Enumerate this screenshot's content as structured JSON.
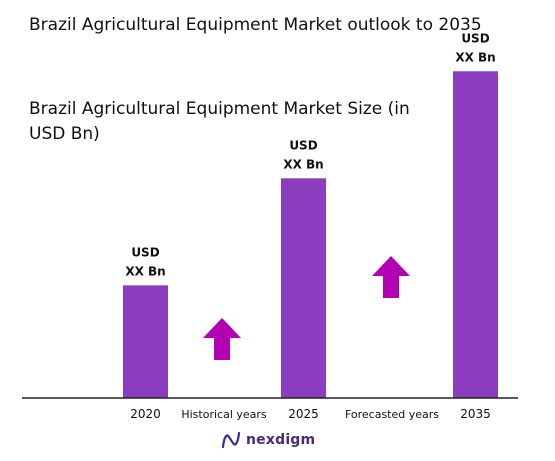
{
  "header": {
    "title": "Brazil Agricultural Equipment Market outlook to 2035",
    "subtitle": "Brazil Agricultural Equipment Market Size (in USD Bn)"
  },
  "brand": {
    "name": "nexdigm",
    "logo_icon": "nexdigm-logo-icon"
  },
  "colors": {
    "bar": "#8a3dbe",
    "arrow": "#b300b3",
    "axis": "#222222"
  },
  "chart_data": {
    "type": "bar",
    "title": "Brazil Agricultural Equipment Market Size (in USD Bn)",
    "categories": [
      "2020",
      "2025",
      "2035"
    ],
    "values": [
      20,
      39,
      58
    ],
    "ylim": [
      0,
      60
    ],
    "data_labels": [
      {
        "line1": "USD",
        "line2": "XX Bn"
      },
      {
        "line1": "USD",
        "line2": "XX Bn"
      },
      {
        "line1": "USD",
        "line2": "XX Bn"
      }
    ],
    "period_labels": [
      "Historical years",
      "Forecasted years"
    ],
    "grid": false,
    "legend": "none"
  }
}
